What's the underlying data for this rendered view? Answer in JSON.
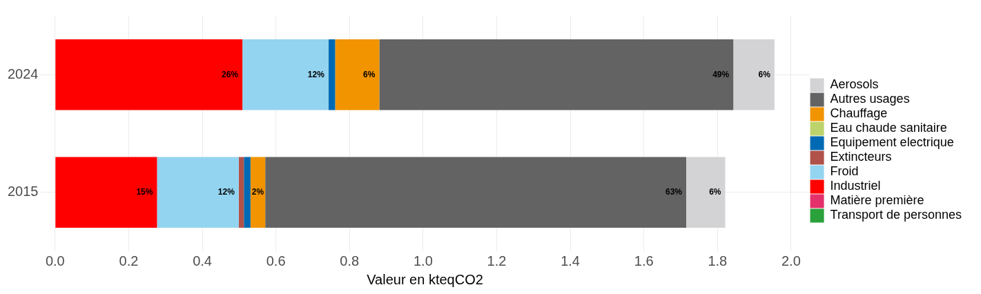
{
  "chart_data": {
    "type": "bar",
    "orientation": "horizontal",
    "stacked": true,
    "xlabel": "Valeur en kteqCO2",
    "categories": [
      "2024",
      "2015"
    ],
    "series": [
      {
        "name": "Transport de personnes",
        "color": "#2aa13a",
        "values": [
          0,
          0
        ]
      },
      {
        "name": "Matière première",
        "color": "#e5316b",
        "values": [
          0,
          0
        ]
      },
      {
        "name": "Industriel",
        "color": "#ff0000",
        "values": [
          0.509,
          0.277
        ]
      },
      {
        "name": "Froid",
        "color": "#93d4f0",
        "values": [
          0.234,
          0.222
        ]
      },
      {
        "name": "Extincteurs",
        "color": "#b0524a",
        "values": [
          0,
          0.014
        ]
      },
      {
        "name": "Equipement electrique",
        "color": "#0069b4",
        "values": [
          0.018,
          0.018
        ]
      },
      {
        "name": "Eau chaude sanitaire",
        "color": "#bcd36b",
        "values": [
          0,
          0
        ]
      },
      {
        "name": "Chauffage",
        "color": "#f29400",
        "values": [
          0.12,
          0.04
        ]
      },
      {
        "name": "Autres usages",
        "color": "#636363",
        "values": [
          0.962,
          1.144
        ]
      },
      {
        "name": "Aerosols",
        "color": "#d3d3d5",
        "values": [
          0.112,
          0.106
        ]
      }
    ],
    "xlim": [
      -0.04,
      2.05
    ],
    "xticks": [
      {
        "value": 0,
        "label": "0.0"
      },
      {
        "value": 0.2,
        "label": "0.2"
      },
      {
        "value": 0.4,
        "label": "0.4"
      },
      {
        "value": 0.6,
        "label": "0.6"
      },
      {
        "value": 0.8,
        "label": "0.8"
      },
      {
        "value": 1,
        "label": "1.0"
      },
      {
        "value": 1.2,
        "label": "1.2"
      },
      {
        "value": 1.4,
        "label": "1.4"
      },
      {
        "value": 1.6,
        "label": "1.6"
      },
      {
        "value": 1.8,
        "label": "1.8"
      },
      {
        "value": 2,
        "label": "2.0"
      }
    ],
    "annotations": [
      {
        "text": "26%",
        "x": 0.509,
        "y": "2024"
      },
      {
        "text": "12%",
        "x": 0.743,
        "y": "2024"
      },
      {
        "text": "6%",
        "x": 0.881,
        "y": "2024"
      },
      {
        "text": "49%",
        "x": 1.843,
        "y": "2024"
      },
      {
        "text": "6%",
        "x": 1.955,
        "y": "2024"
      },
      {
        "text": "15%",
        "x": 0.277,
        "y": "2015"
      },
      {
        "text": "12%",
        "x": 0.499,
        "y": "2015"
      },
      {
        "text": "2%",
        "x": 0.571,
        "y": "2015"
      },
      {
        "text": "63%",
        "x": 1.715,
        "y": "2015"
      },
      {
        "text": "6%",
        "x": 1.821,
        "y": "2015"
      }
    ],
    "grid": true,
    "legend": "right"
  }
}
